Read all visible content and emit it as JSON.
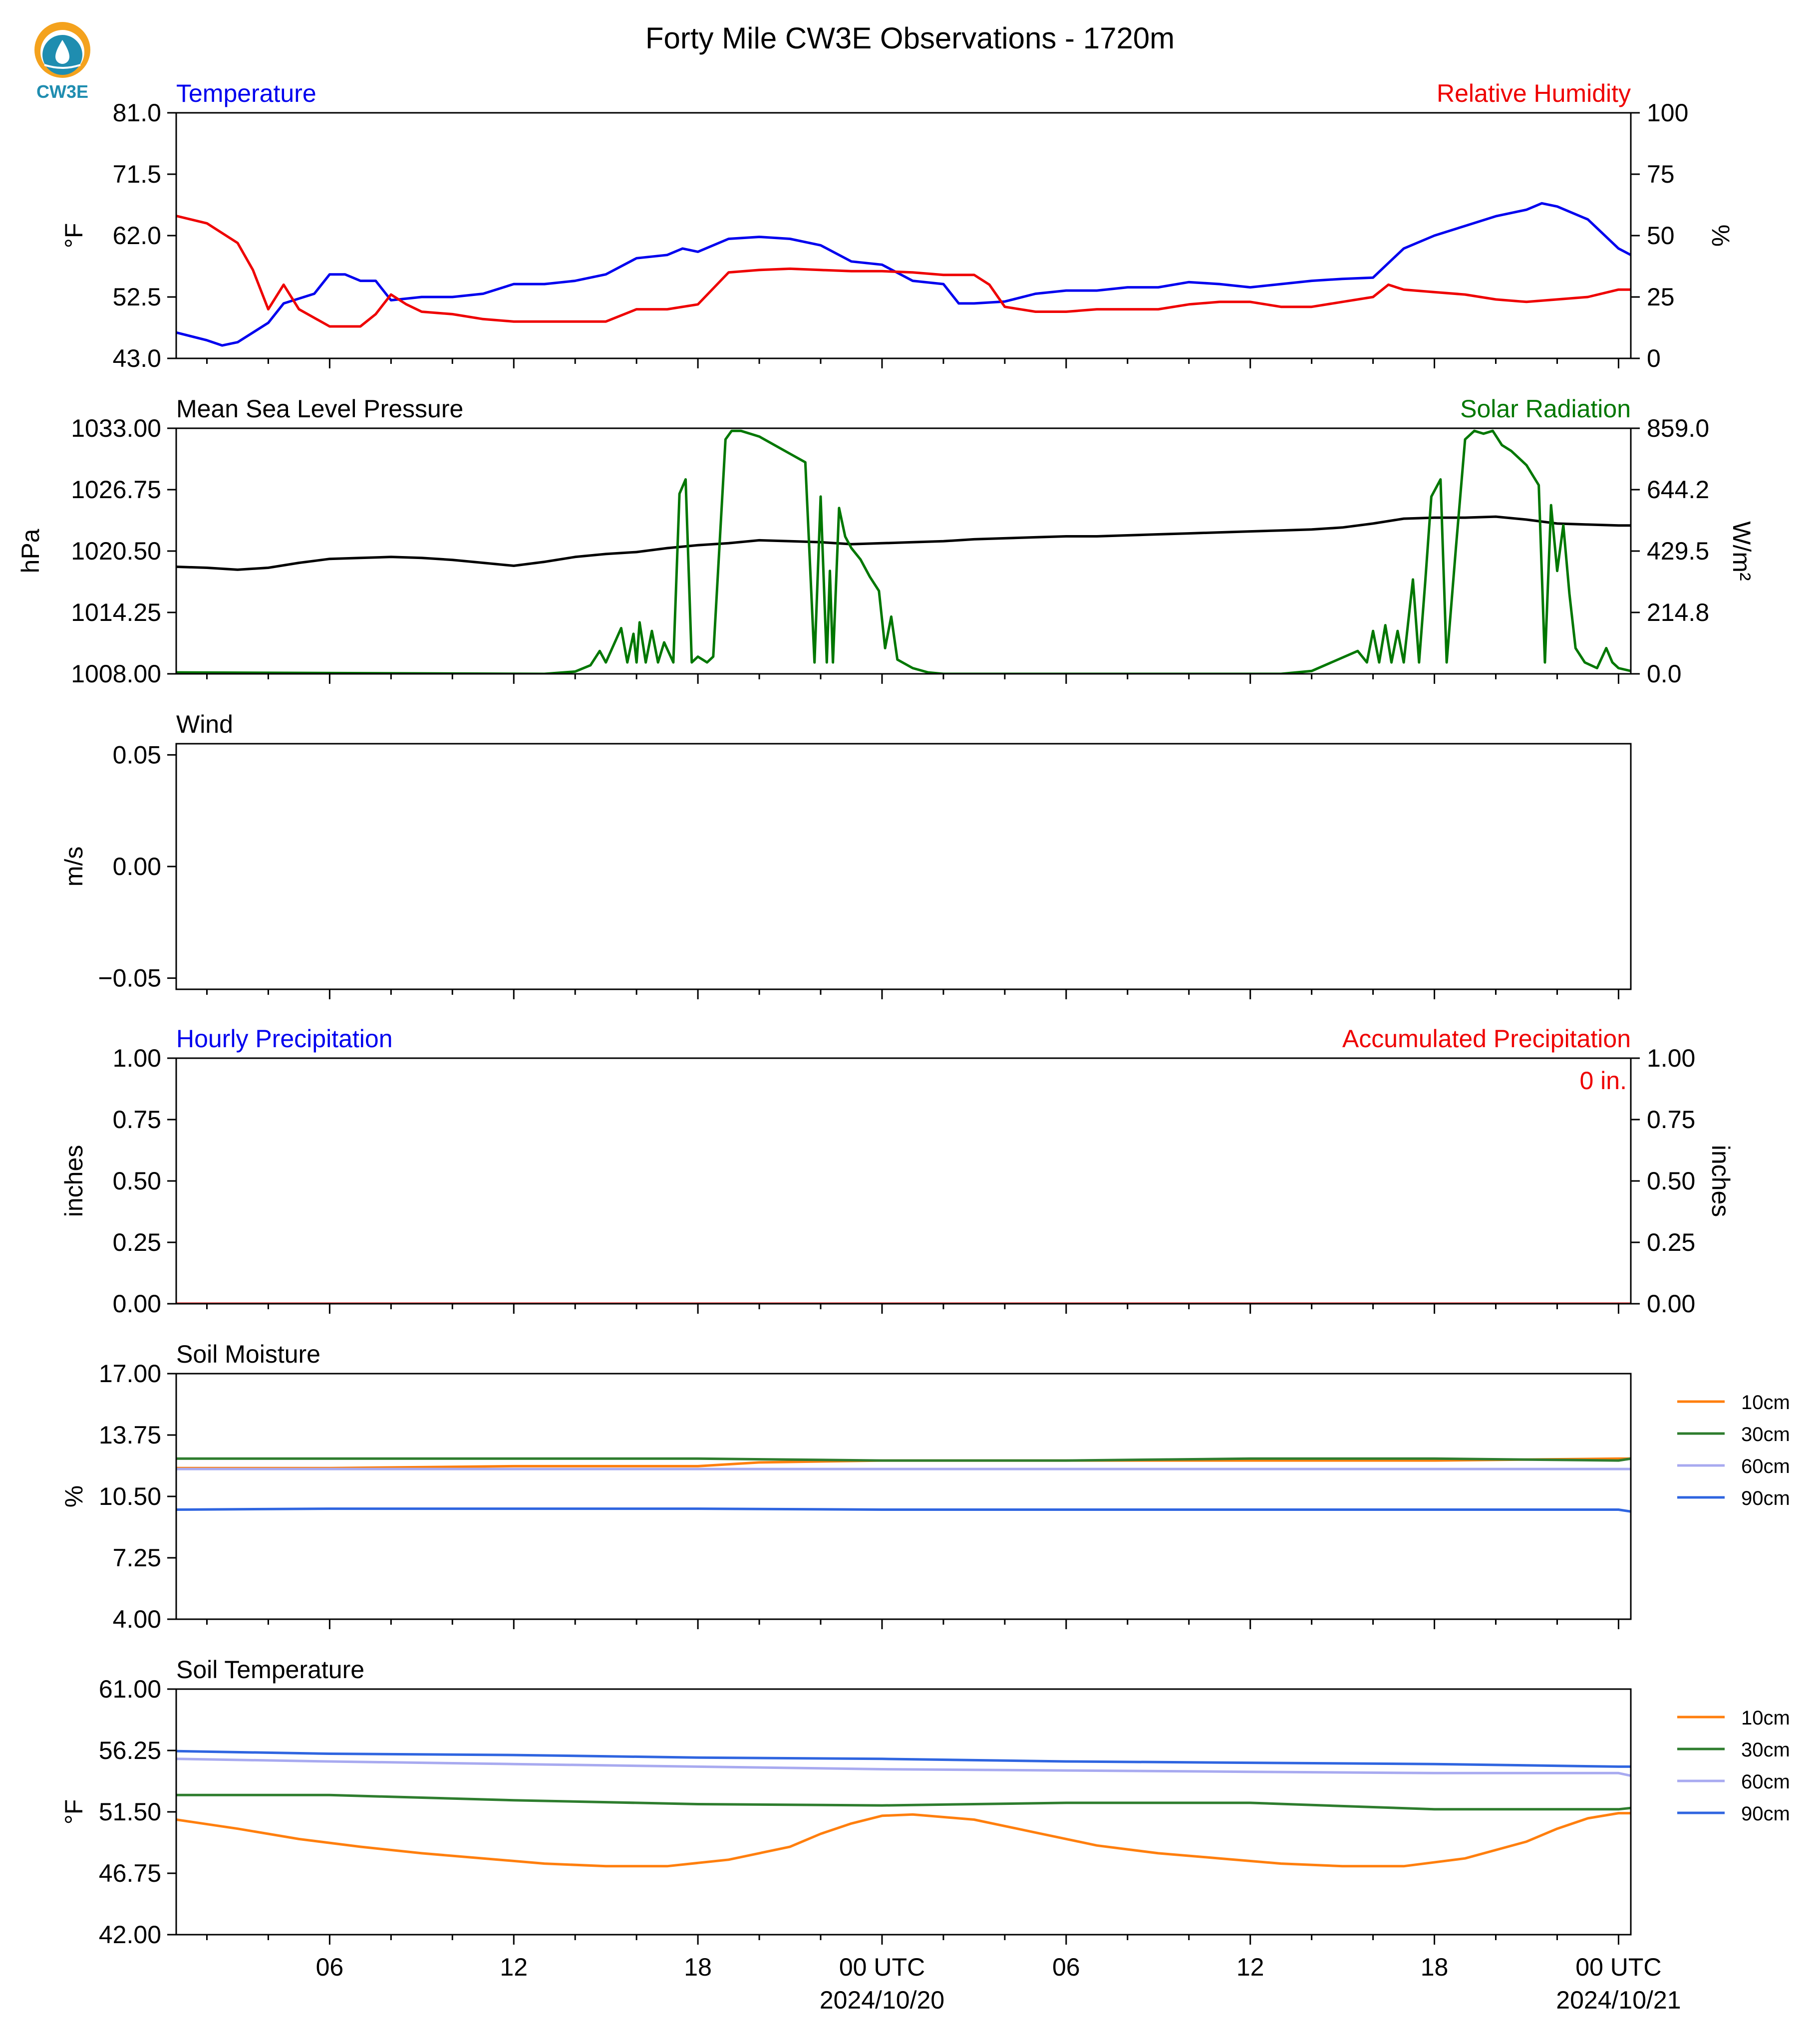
{
  "figure": {
    "title": "Forty Mile CW3E Observations - 1720m",
    "logo_text": "CW3E"
  },
  "colors": {
    "temperature": "#0000ee",
    "humidity": "#ee0000",
    "pressure": "#000000",
    "solar": "#007700",
    "soil_10cm": "#ff7f0e",
    "soil_30cm": "#2e7d2e",
    "soil_60cm": "#a8aaf0",
    "soil_90cm": "#2f65e0"
  },
  "x_axis": {
    "tick_labels": [
      {
        "hour": 6,
        "label": "06"
      },
      {
        "hour": 12,
        "label": "12"
      },
      {
        "hour": 18,
        "label": "18"
      },
      {
        "hour": 24,
        "label": "00 UTC",
        "sub": "2024/10/20"
      },
      {
        "hour": 30,
        "label": "06"
      },
      {
        "hour": 36,
        "label": "12"
      },
      {
        "hour": 42,
        "label": "18"
      },
      {
        "hour": 48,
        "label": "00 UTC",
        "sub": "2024/10/21"
      }
    ],
    "range_hours": [
      1,
      48.4
    ]
  },
  "chart_data": [
    {
      "type": "line",
      "title": "Temperature",
      "title_right": "Relative Humidity",
      "ylabel": "°F",
      "ylabel_right": "%",
      "ylim": [
        43.0,
        81.0
      ],
      "yticks": [
        "43.0",
        "52.5",
        "62.0",
        "71.5",
        "81.0"
      ],
      "ylim_right": [
        0,
        100
      ],
      "yticks_right": [
        "0",
        "25",
        "50",
        "75",
        "100"
      ],
      "series": [
        {
          "name": "Temperature",
          "axis": "left",
          "color_key": "temperature",
          "x": [
            1,
            2,
            2.5,
            3,
            4,
            4.5,
            5.5,
            6,
            6.5,
            7,
            7.5,
            8,
            9,
            10,
            11,
            12,
            13,
            14,
            15,
            16,
            17,
            17.5,
            18,
            19,
            20,
            21,
            22,
            23,
            24,
            25,
            26,
            26.5,
            27,
            28,
            29,
            30,
            31,
            32,
            33,
            34,
            35,
            36,
            37,
            38,
            39,
            40,
            41,
            42,
            43,
            44,
            45,
            45.5,
            46,
            47,
            48,
            48.4
          ],
          "y": [
            47,
            45.8,
            45,
            45.5,
            48.5,
            51.5,
            53,
            56,
            56,
            55,
            55,
            52,
            52.5,
            52.5,
            53,
            54.5,
            54.5,
            55,
            56,
            58.5,
            59,
            60,
            59.5,
            61.5,
            61.8,
            61.5,
            60.5,
            58,
            57.5,
            55,
            54.5,
            51.5,
            51.5,
            51.8,
            53,
            53.5,
            53.5,
            54,
            54,
            54.8,
            54.5,
            54,
            54.5,
            55,
            55.3,
            55.5,
            60,
            62,
            63.5,
            65,
            66,
            67,
            66.5,
            64.5,
            60,
            59
          ]
        },
        {
          "name": "Relative Humidity",
          "axis": "right",
          "color_key": "humidity",
          "x": [
            1,
            2,
            3,
            3.5,
            4,
            4.5,
            5,
            6,
            7,
            7.5,
            8,
            8.5,
            9,
            10,
            11,
            12,
            13,
            14,
            15,
            16,
            17,
            18,
            19,
            20,
            21,
            22,
            23,
            24,
            25,
            26,
            27,
            27.5,
            28,
            29,
            30,
            31,
            32,
            33,
            34,
            35,
            36,
            37,
            38,
            39,
            40,
            40.5,
            41,
            42,
            43,
            44,
            45,
            46,
            47,
            48,
            48.4
          ],
          "y": [
            58,
            55,
            47,
            36,
            20,
            30,
            20,
            13,
            13,
            18,
            26,
            22,
            19,
            18,
            16,
            15,
            15,
            15,
            15,
            20,
            20,
            22,
            35,
            36,
            36.5,
            36,
            35.5,
            35.5,
            35,
            34,
            34,
            30,
            21,
            19,
            19,
            20,
            20,
            20,
            22,
            23,
            23,
            21,
            21,
            23,
            25,
            30,
            28,
            27,
            26,
            24,
            23,
            24,
            25,
            28,
            28
          ]
        }
      ]
    },
    {
      "type": "line",
      "title": "Mean Sea Level Pressure",
      "title_right": "Solar Radiation",
      "ylabel": "hPa",
      "ylabel_right": "W/m²",
      "ylim": [
        1008.0,
        1033.0
      ],
      "yticks": [
        "1008.00",
        "1014.25",
        "1020.50",
        "1026.75",
        "1033.00"
      ],
      "ylim_right": [
        0.0,
        859.0
      ],
      "yticks_right": [
        "0.0",
        "214.8",
        "429.5",
        "644.2",
        "859.0"
      ],
      "series": [
        {
          "name": "Mean Sea Level Pressure",
          "axis": "left",
          "color_key": "pressure",
          "x": [
            1,
            2,
            3,
            4,
            5,
            6,
            7,
            8,
            9,
            10,
            11,
            12,
            13,
            14,
            15,
            16,
            17,
            18,
            19,
            20,
            21,
            22,
            23,
            24,
            25,
            26,
            27,
            28,
            29,
            30,
            31,
            32,
            33,
            34,
            35,
            36,
            37,
            38,
            39,
            40,
            41,
            42,
            43,
            44,
            45,
            46,
            47,
            48,
            48.4
          ],
          "y": [
            1018.9,
            1018.8,
            1018.6,
            1018.8,
            1019.3,
            1019.7,
            1019.8,
            1019.9,
            1019.8,
            1019.6,
            1019.3,
            1019.0,
            1019.4,
            1019.9,
            1020.2,
            1020.4,
            1020.8,
            1021.1,
            1021.3,
            1021.6,
            1021.5,
            1021.4,
            1021.2,
            1021.3,
            1021.4,
            1021.5,
            1021.7,
            1021.8,
            1021.9,
            1022.0,
            1022.0,
            1022.1,
            1022.2,
            1022.3,
            1022.4,
            1022.5,
            1022.6,
            1022.7,
            1022.9,
            1023.3,
            1023.8,
            1023.9,
            1023.9,
            1024.0,
            1023.7,
            1023.3,
            1023.2,
            1023.1,
            1023.1
          ]
        },
        {
          "name": "Solar Radiation",
          "axis": "right",
          "color_key": "solar",
          "x": [
            1,
            13,
            14,
            14.5,
            14.8,
            15,
            15.5,
            15.7,
            15.9,
            16.0,
            16.1,
            16.3,
            16.5,
            16.7,
            16.9,
            17.2,
            17.4,
            17.6,
            17.8,
            18.0,
            18.3,
            18.5,
            18.9,
            19.1,
            19.4,
            19.7,
            20,
            20.5,
            21,
            21.5,
            21.8,
            22.0,
            22.2,
            22.3,
            22.4,
            22.6,
            22.8,
            23.0,
            23.3,
            23.6,
            23.9,
            24.1,
            24.3,
            24.5,
            25.0,
            25.5,
            26,
            37,
            38,
            39.5,
            39.8,
            40.0,
            40.2,
            40.4,
            40.6,
            40.8,
            41.0,
            41.3,
            41.5,
            41.7,
            41.9,
            42.2,
            42.4,
            42.7,
            43.0,
            43.3,
            43.6,
            43.9,
            44.2,
            44.5,
            45.0,
            45.4,
            45.6,
            45.8,
            46.0,
            46.2,
            46.4,
            46.6,
            46.9,
            47.3,
            47.6,
            47.8,
            48.0,
            48.4
          ],
          "y": [
            5,
            0,
            8,
            30,
            80,
            40,
            160,
            40,
            140,
            40,
            180,
            40,
            150,
            40,
            110,
            40,
            630,
            680,
            40,
            60,
            40,
            60,
            820,
            850,
            850,
            840,
            830,
            800,
            770,
            740,
            40,
            620,
            40,
            360,
            40,
            580,
            480,
            440,
            400,
            340,
            290,
            90,
            200,
            50,
            20,
            5,
            0,
            0,
            10,
            80,
            40,
            150,
            40,
            170,
            40,
            150,
            40,
            330,
            40,
            320,
            620,
            680,
            40,
            440,
            820,
            850,
            840,
            850,
            800,
            780,
            730,
            660,
            40,
            590,
            360,
            520,
            280,
            90,
            40,
            20,
            90,
            40,
            20,
            10
          ]
        }
      ]
    },
    {
      "type": "line",
      "title": "Wind",
      "ylabel": "m/s",
      "ylim": [
        -0.055,
        0.055
      ],
      "yticks": [
        "−0.05",
        "0.00",
        "0.05"
      ],
      "yticks_values": [
        -0.05,
        0.0,
        0.05
      ],
      "series": []
    },
    {
      "type": "line",
      "title": "Hourly Precipitation",
      "title_right": "Accumulated Precipitation",
      "annotation": "0 in.",
      "ylabel": "inches",
      "ylabel_right": "inches",
      "ylim": [
        0.0,
        1.0
      ],
      "yticks": [
        "0.00",
        "0.25",
        "0.50",
        "0.75",
        "1.00"
      ],
      "ylim_right": [
        0.0,
        1.0
      ],
      "yticks_right": [
        "0.00",
        "0.25",
        "0.50",
        "0.75",
        "1.00"
      ],
      "series": [
        {
          "name": "Hourly Precipitation",
          "axis": "left",
          "color_key": "temperature",
          "x": [
            1,
            48.4
          ],
          "y": [
            0,
            0
          ]
        },
        {
          "name": "Accumulated Precipitation",
          "axis": "right",
          "color_key": "humidity",
          "x": [
            1,
            48.4
          ],
          "y": [
            0,
            0
          ]
        }
      ]
    },
    {
      "type": "line",
      "title": "Soil Moisture",
      "ylabel": "%",
      "ylim": [
        4.0,
        17.0
      ],
      "yticks": [
        "4.00",
        "7.25",
        "10.50",
        "13.75",
        "17.00"
      ],
      "legend": "right",
      "series": [
        {
          "name": "10cm",
          "color_key": "soil_10cm",
          "x": [
            1,
            6,
            12,
            18,
            20,
            24,
            30,
            36,
            42,
            48,
            48.4
          ],
          "y": [
            12.0,
            12.0,
            12.1,
            12.1,
            12.3,
            12.4,
            12.4,
            12.4,
            12.4,
            12.5,
            12.5
          ]
        },
        {
          "name": "30cm",
          "color_key": "soil_30cm",
          "x": [
            1,
            6,
            12,
            18,
            24,
            30,
            36,
            42,
            48,
            48.4
          ],
          "y": [
            12.5,
            12.5,
            12.5,
            12.5,
            12.4,
            12.4,
            12.5,
            12.5,
            12.4,
            12.5
          ]
        },
        {
          "name": "60cm",
          "color_key": "soil_60cm",
          "x": [
            1,
            6,
            12,
            18,
            24,
            30,
            36,
            42,
            48,
            48.4
          ],
          "y": [
            11.95,
            11.95,
            11.95,
            11.95,
            11.95,
            11.95,
            11.95,
            11.95,
            11.95,
            11.95
          ]
        },
        {
          "name": "90cm",
          "color_key": "soil_90cm",
          "x": [
            1,
            6,
            12,
            18,
            24,
            30,
            36,
            42,
            48,
            48.4
          ],
          "y": [
            9.8,
            9.85,
            9.85,
            9.85,
            9.8,
            9.8,
            9.8,
            9.8,
            9.8,
            9.7
          ]
        }
      ]
    },
    {
      "type": "line",
      "title": "Soil Temperature",
      "ylabel": "°F",
      "ylim": [
        42.0,
        61.0
      ],
      "yticks": [
        "42.00",
        "46.75",
        "51.50",
        "56.25",
        "61.00"
      ],
      "legend": "right",
      "series": [
        {
          "name": "10cm",
          "color_key": "soil_10cm",
          "x": [
            1,
            3,
            5,
            7,
            9,
            11,
            13,
            15,
            17,
            19,
            21,
            22,
            23,
            24,
            25,
            27,
            29,
            31,
            33,
            35,
            37,
            39,
            41,
            43,
            45,
            46,
            47,
            48,
            48.4
          ],
          "y": [
            50.9,
            50.2,
            49.4,
            48.8,
            48.3,
            47.9,
            47.5,
            47.3,
            47.3,
            47.8,
            48.8,
            49.8,
            50.6,
            51.2,
            51.3,
            50.9,
            49.9,
            48.9,
            48.3,
            47.9,
            47.5,
            47.3,
            47.3,
            47.9,
            49.2,
            50.2,
            51.0,
            51.4,
            51.4
          ]
        },
        {
          "name": "30cm",
          "color_key": "soil_30cm",
          "x": [
            1,
            6,
            12,
            18,
            24,
            30,
            36,
            42,
            48,
            48.4
          ],
          "y": [
            52.8,
            52.8,
            52.4,
            52.1,
            52.0,
            52.2,
            52.2,
            51.7,
            51.7,
            51.8
          ]
        },
        {
          "name": "60cm",
          "color_key": "soil_60cm",
          "x": [
            1,
            6,
            12,
            18,
            24,
            30,
            36,
            42,
            48,
            48.4
          ],
          "y": [
            55.6,
            55.4,
            55.2,
            55.0,
            54.8,
            54.7,
            54.6,
            54.5,
            54.5,
            54.3
          ]
        },
        {
          "name": "90cm",
          "color_key": "soil_90cm",
          "x": [
            1,
            6,
            12,
            18,
            24,
            30,
            36,
            42,
            48,
            48.4
          ],
          "y": [
            56.2,
            56.0,
            55.9,
            55.7,
            55.6,
            55.4,
            55.3,
            55.2,
            55.0,
            55.0
          ]
        }
      ]
    }
  ]
}
